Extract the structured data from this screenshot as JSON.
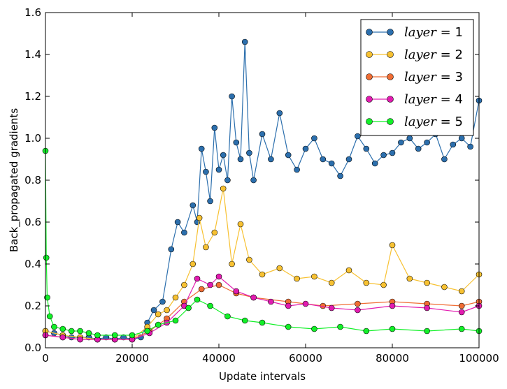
{
  "chart_data": {
    "type": "line",
    "xlabel": "Update intervals",
    "ylabel": "Back_propagated gradients",
    "xlim": [
      0,
      100000
    ],
    "ylim": [
      0,
      1.6
    ],
    "xticks": [
      0,
      20000,
      40000,
      60000,
      80000,
      100000
    ],
    "yticks": [
      0.0,
      0.2,
      0.4,
      0.6,
      0.8,
      1.0,
      1.2,
      1.4,
      1.6
    ],
    "xtick_labels": [
      "0",
      "20000",
      "40000",
      "60000",
      "80000",
      "100000"
    ],
    "ytick_labels": [
      "0.0",
      "0.2",
      "0.4",
      "0.6",
      "0.8",
      "1.0",
      "1.2",
      "1.4",
      "1.6"
    ],
    "grid": false,
    "legend_position": "top-right",
    "series": [
      {
        "name": "layer = 1",
        "legend_var": "layer",
        "legend_value": "1",
        "color": "#2c6fad",
        "points": [
          [
            0,
            0.08
          ],
          [
            2000,
            0.07
          ],
          [
            4000,
            0.06
          ],
          [
            6000,
            0.05
          ],
          [
            8000,
            0.05
          ],
          [
            10000,
            0.05
          ],
          [
            12000,
            0.04
          ],
          [
            14000,
            0.05
          ],
          [
            16000,
            0.04
          ],
          [
            18000,
            0.05
          ],
          [
            20000,
            0.04
          ],
          [
            22000,
            0.05
          ],
          [
            23500,
            0.12
          ],
          [
            25000,
            0.18
          ],
          [
            27000,
            0.22
          ],
          [
            29000,
            0.47
          ],
          [
            30500,
            0.6
          ],
          [
            32000,
            0.55
          ],
          [
            34000,
            0.68
          ],
          [
            35000,
            0.6
          ],
          [
            36000,
            0.95
          ],
          [
            37000,
            0.84
          ],
          [
            38000,
            0.7
          ],
          [
            39000,
            1.05
          ],
          [
            40000,
            0.85
          ],
          [
            41000,
            0.92
          ],
          [
            42000,
            0.8
          ],
          [
            43000,
            1.2
          ],
          [
            44000,
            0.98
          ],
          [
            45000,
            0.9
          ],
          [
            46000,
            1.46
          ],
          [
            47000,
            0.93
          ],
          [
            48000,
            0.8
          ],
          [
            50000,
            1.02
          ],
          [
            52000,
            0.9
          ],
          [
            54000,
            1.12
          ],
          [
            56000,
            0.92
          ],
          [
            58000,
            0.85
          ],
          [
            60000,
            0.95
          ],
          [
            62000,
            1.0
          ],
          [
            64000,
            0.9
          ],
          [
            66000,
            0.88
          ],
          [
            68000,
            0.82
          ],
          [
            70000,
            0.9
          ],
          [
            72000,
            1.01
          ],
          [
            74000,
            0.95
          ],
          [
            76000,
            0.88
          ],
          [
            78000,
            0.92
          ],
          [
            80000,
            0.93
          ],
          [
            82000,
            0.98
          ],
          [
            84000,
            1.0
          ],
          [
            86000,
            0.95
          ],
          [
            88000,
            0.98
          ],
          [
            90000,
            1.02
          ],
          [
            92000,
            0.9
          ],
          [
            94000,
            0.97
          ],
          [
            96000,
            1.0
          ],
          [
            98000,
            0.96
          ],
          [
            100000,
            1.18
          ]
        ]
      },
      {
        "name": "layer = 2",
        "legend_var": "layer",
        "legend_value": "2",
        "color": "#f7c132",
        "points": [
          [
            0,
            0.08
          ],
          [
            4000,
            0.06
          ],
          [
            8000,
            0.05
          ],
          [
            12000,
            0.04
          ],
          [
            16000,
            0.04
          ],
          [
            20000,
            0.04
          ],
          [
            23500,
            0.1
          ],
          [
            26000,
            0.16
          ],
          [
            28000,
            0.18
          ],
          [
            30000,
            0.24
          ],
          [
            32000,
            0.3
          ],
          [
            34000,
            0.4
          ],
          [
            35500,
            0.62
          ],
          [
            37000,
            0.48
          ],
          [
            39000,
            0.55
          ],
          [
            41000,
            0.76
          ],
          [
            43000,
            0.4
          ],
          [
            45000,
            0.59
          ],
          [
            47000,
            0.42
          ],
          [
            50000,
            0.35
          ],
          [
            54000,
            0.38
          ],
          [
            58000,
            0.33
          ],
          [
            62000,
            0.34
          ],
          [
            66000,
            0.31
          ],
          [
            70000,
            0.37
          ],
          [
            74000,
            0.31
          ],
          [
            78000,
            0.3
          ],
          [
            80000,
            0.49
          ],
          [
            84000,
            0.33
          ],
          [
            88000,
            0.31
          ],
          [
            92000,
            0.29
          ],
          [
            96000,
            0.27
          ],
          [
            100000,
            0.35
          ]
        ]
      },
      {
        "name": "layer = 3",
        "legend_var": "layer",
        "legend_value": "3",
        "color": "#f06d34",
        "points": [
          [
            0,
            0.06
          ],
          [
            4000,
            0.05
          ],
          [
            8000,
            0.04
          ],
          [
            12000,
            0.04
          ],
          [
            16000,
            0.04
          ],
          [
            20000,
            0.04
          ],
          [
            24000,
            0.08
          ],
          [
            28000,
            0.14
          ],
          [
            32000,
            0.22
          ],
          [
            36000,
            0.28
          ],
          [
            40000,
            0.3
          ],
          [
            44000,
            0.26
          ],
          [
            48000,
            0.24
          ],
          [
            56000,
            0.22
          ],
          [
            64000,
            0.2
          ],
          [
            72000,
            0.21
          ],
          [
            80000,
            0.22
          ],
          [
            88000,
            0.21
          ],
          [
            96000,
            0.2
          ],
          [
            100000,
            0.22
          ]
        ]
      },
      {
        "name": "layer = 4",
        "legend_var": "layer",
        "legend_value": "4",
        "color": "#e21bb0",
        "points": [
          [
            0,
            0.06
          ],
          [
            4000,
            0.05
          ],
          [
            8000,
            0.04
          ],
          [
            12000,
            0.04
          ],
          [
            16000,
            0.04
          ],
          [
            20000,
            0.04
          ],
          [
            24000,
            0.07
          ],
          [
            28000,
            0.12
          ],
          [
            32000,
            0.2
          ],
          [
            35000,
            0.33
          ],
          [
            38000,
            0.3
          ],
          [
            40000,
            0.34
          ],
          [
            44000,
            0.27
          ],
          [
            48000,
            0.24
          ],
          [
            52000,
            0.22
          ],
          [
            56000,
            0.2
          ],
          [
            60000,
            0.21
          ],
          [
            66000,
            0.19
          ],
          [
            72000,
            0.18
          ],
          [
            80000,
            0.2
          ],
          [
            88000,
            0.19
          ],
          [
            96000,
            0.17
          ],
          [
            100000,
            0.2
          ]
        ]
      },
      {
        "name": "layer = 5",
        "legend_var": "layer",
        "legend_value": "5",
        "color": "#12f028",
        "points": [
          [
            0,
            0.94
          ],
          [
            200,
            0.43
          ],
          [
            400,
            0.24
          ],
          [
            1000,
            0.15
          ],
          [
            2000,
            0.1
          ],
          [
            4000,
            0.09
          ],
          [
            6000,
            0.08
          ],
          [
            8000,
            0.08
          ],
          [
            10000,
            0.07
          ],
          [
            12000,
            0.06
          ],
          [
            16000,
            0.06
          ],
          [
            20000,
            0.06
          ],
          [
            23500,
            0.08
          ],
          [
            26000,
            0.11
          ],
          [
            30000,
            0.13
          ],
          [
            33000,
            0.19
          ],
          [
            35000,
            0.23
          ],
          [
            38000,
            0.2
          ],
          [
            42000,
            0.15
          ],
          [
            46000,
            0.13
          ],
          [
            50000,
            0.12
          ],
          [
            56000,
            0.1
          ],
          [
            62000,
            0.09
          ],
          [
            68000,
            0.1
          ],
          [
            74000,
            0.08
          ],
          [
            80000,
            0.09
          ],
          [
            88000,
            0.08
          ],
          [
            96000,
            0.09
          ],
          [
            100000,
            0.08
          ]
        ]
      }
    ]
  }
}
